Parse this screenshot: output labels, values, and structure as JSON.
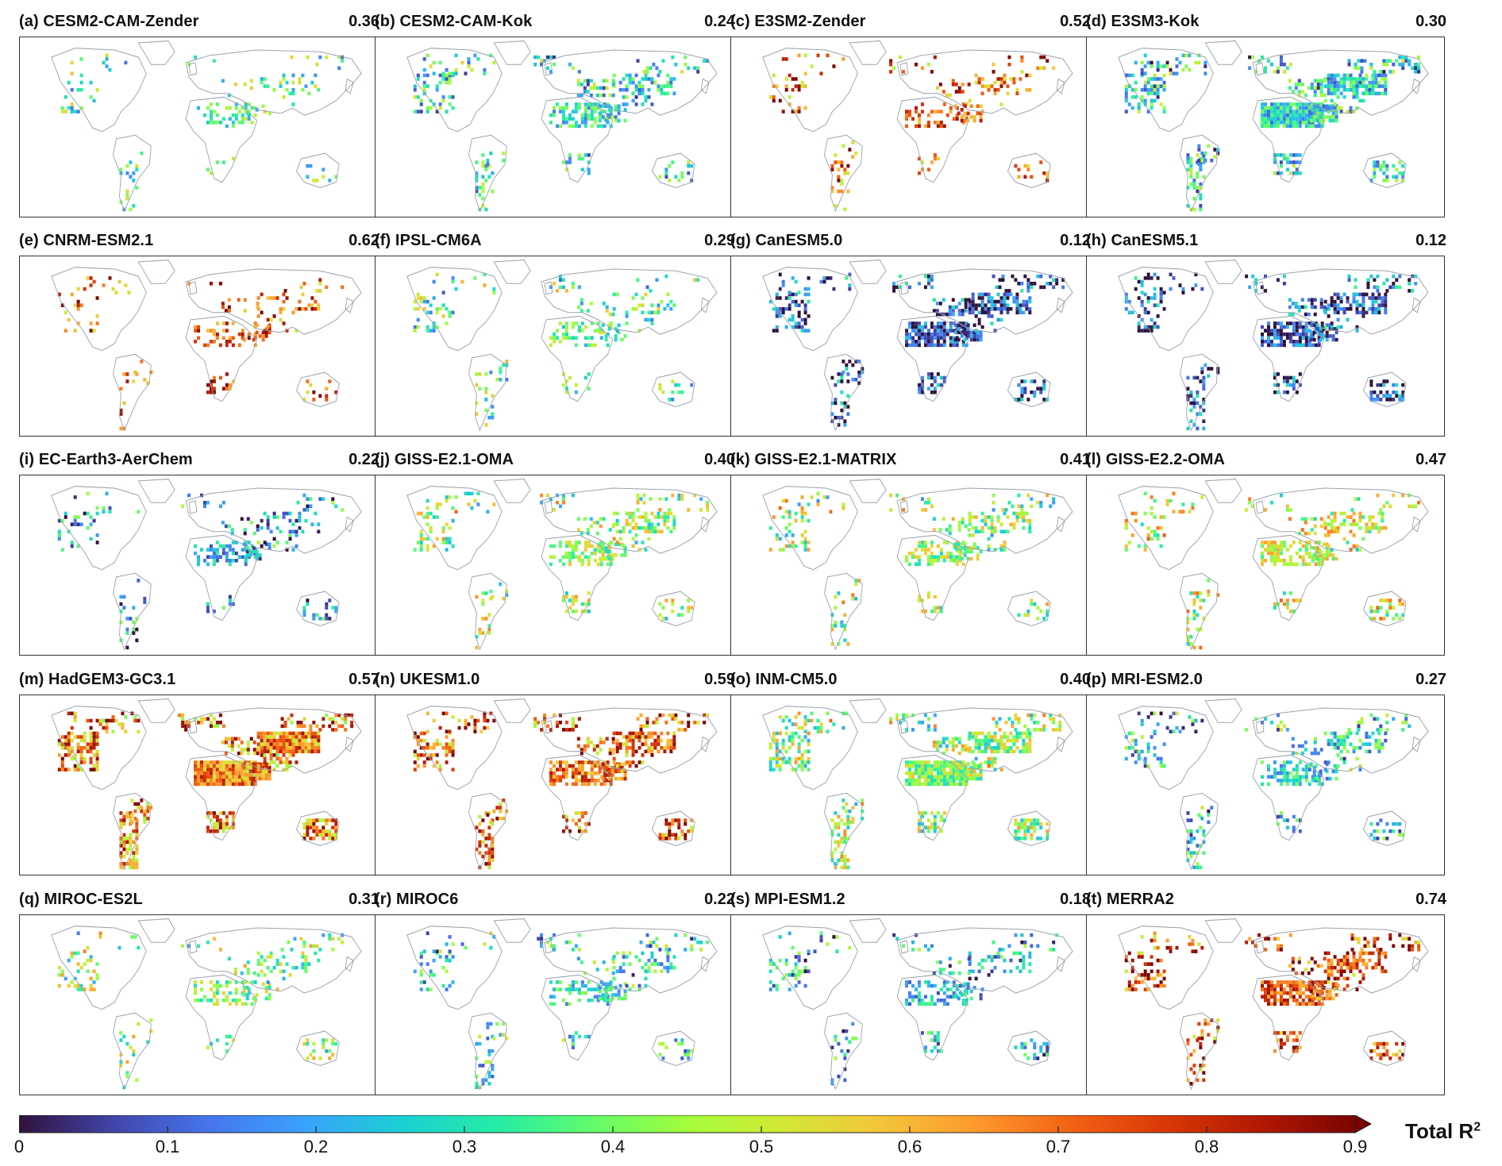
{
  "panels": [
    {
      "label": "(a) CESM2-CAM-Zender",
      "score": "0.36",
      "level": 0.4,
      "cover": 0.22
    },
    {
      "label": "(b) CESM2-CAM-Kok",
      "score": "0.24",
      "level": 0.32,
      "cover": 0.45
    },
    {
      "label": "(c) E3SM2-Zender",
      "score": "0.52",
      "level": 0.78,
      "cover": 0.3
    },
    {
      "label": "(d) E3SM3-Kok",
      "score": "0.30",
      "level": 0.3,
      "cover": 0.75
    },
    {
      "label": "(e) CNRM-ESM2.1",
      "score": "0.62",
      "level": 0.82,
      "cover": 0.25
    },
    {
      "label": "(f) IPSL-CM6A",
      "score": "0.29",
      "level": 0.4,
      "cover": 0.28
    },
    {
      "label": "(g) CanESM5.0",
      "score": "0.12",
      "level": 0.1,
      "cover": 0.6
    },
    {
      "label": "(h) CanESM5.1",
      "score": "0.12",
      "level": 0.1,
      "cover": 0.58
    },
    {
      "label": "(i) EC-Earth3-AerChem",
      "score": "0.22",
      "level": 0.22,
      "cover": 0.3
    },
    {
      "label": "(j) GISS-E2.1-OMA",
      "score": "0.40",
      "level": 0.48,
      "cover": 0.42
    },
    {
      "label": "(k) GISS-E2.1-MATRIX",
      "score": "0.41",
      "level": 0.48,
      "cover": 0.42
    },
    {
      "label": "(l) GISS-E2.2-OMA",
      "score": "0.47",
      "level": 0.55,
      "cover": 0.42
    },
    {
      "label": "(m) HadGEM3-GC3.1",
      "score": "0.57",
      "level": 0.75,
      "cover": 0.95
    },
    {
      "label": "(n) UKESM1.0",
      "score": "0.59",
      "level": 0.78,
      "cover": 0.62
    },
    {
      "label": "(o) INM-CM5.0",
      "score": "0.40",
      "level": 0.48,
      "cover": 0.72
    },
    {
      "label": "(p) MRI-ESM2.0",
      "score": "0.27",
      "level": 0.3,
      "cover": 0.4
    },
    {
      "label": "(q) MIROC-ES2L",
      "score": "0.31",
      "level": 0.45,
      "cover": 0.3
    },
    {
      "label": "(r) MIROC6",
      "score": "0.22",
      "level": 0.32,
      "cover": 0.38
    },
    {
      "label": "(s) MPI-ESM1.2",
      "score": "0.18",
      "level": 0.25,
      "cover": 0.35
    },
    {
      "label": "(t) MERRA2",
      "score": "0.74",
      "level": 0.82,
      "cover": 0.55
    }
  ],
  "colorbar": {
    "title": "Total R",
    "title_sup": "2",
    "ticks": [
      "0",
      "0.1",
      "0.2",
      "0.3",
      "0.4",
      "0.5",
      "0.6",
      "0.7",
      "0.8",
      "0.9"
    ],
    "min": 0,
    "max": 0.9,
    "colormap": [
      "#30123b",
      "#4145ab",
      "#4675ed",
      "#39a2fc",
      "#1bcfd4",
      "#24eca6",
      "#61fc6c",
      "#a4fc3b",
      "#d1e834",
      "#f3c63a",
      "#fe9b2d",
      "#f36315",
      "#d93806",
      "#b11901",
      "#7a0402"
    ]
  }
}
